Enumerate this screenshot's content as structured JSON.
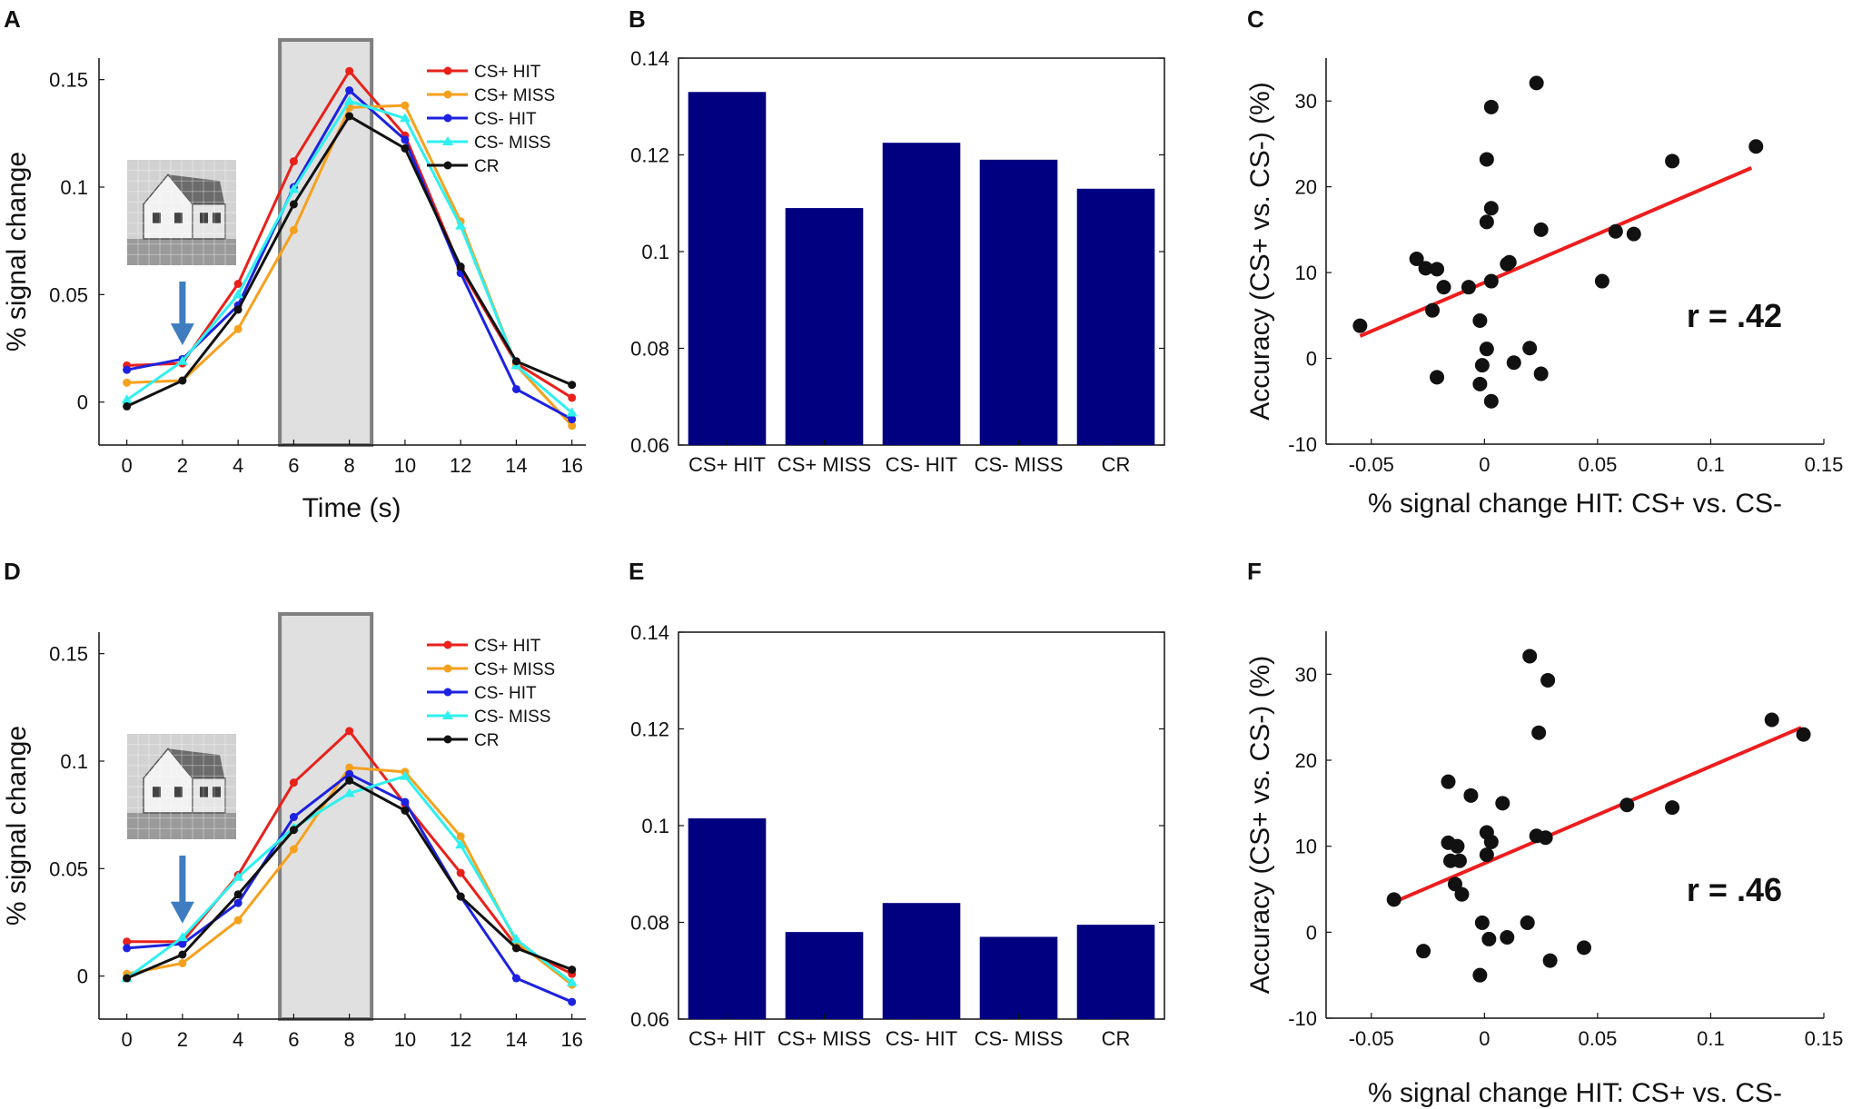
{
  "figure": {
    "panel_letters": [
      "A",
      "B",
      "C",
      "D",
      "E",
      "F"
    ],
    "house_icon": "house-photo-icon",
    "stimulus_arrow_icon": "down-arrow-icon",
    "colors": {
      "CS+ HIT": "#e8211b",
      "CS+ MISS": "#f5a11e",
      "CS- HIT": "#1d22e0",
      "CS- MISS": "#2ff0f0",
      "CR": "#111111",
      "bar": "#000080",
      "fit": "#ee1d1d",
      "shade": "#e0e0e0",
      "shade_border": "#808080",
      "arrow": "#3f7cc0"
    }
  },
  "chart_data": [
    {
      "panel": "A",
      "type": "line",
      "title": "",
      "xlabel": "Time (s)",
      "ylabel": "% signal change",
      "xlim": [
        -1,
        16.5
      ],
      "ylim": [
        -0.02,
        0.16
      ],
      "xticks": [
        0,
        2,
        4,
        6,
        8,
        10,
        12,
        14,
        16
      ],
      "xticklabels": [
        "0",
        "2",
        "4",
        "6",
        "8",
        "10",
        "12",
        "14",
        "16"
      ],
      "yticks": [
        0,
        0.05,
        0.1,
        0.15
      ],
      "yticklabels": [
        "0",
        "0.05",
        "0.1",
        "0.15"
      ],
      "shaded_interval": [
        5.5,
        8.8
      ],
      "legend_position": "top-right",
      "x": [
        0,
        2,
        4,
        6,
        8,
        10,
        12,
        14,
        16
      ],
      "series": [
        {
          "name": "CS+ HIT",
          "values": [
            0.017,
            0.018,
            0.055,
            0.112,
            0.154,
            0.124,
            0.062,
            0.018,
            0.002
          ]
        },
        {
          "name": "CS+ MISS",
          "values": [
            0.009,
            0.01,
            0.034,
            0.08,
            0.137,
            0.138,
            0.084,
            0.017,
            -0.011
          ]
        },
        {
          "name": "CS- HIT",
          "values": [
            0.015,
            0.02,
            0.045,
            0.1,
            0.145,
            0.122,
            0.06,
            0.006,
            -0.008
          ]
        },
        {
          "name": "CS- MISS",
          "values": [
            0.001,
            0.019,
            0.05,
            0.099,
            0.14,
            0.132,
            0.082,
            0.017,
            -0.005
          ]
        },
        {
          "name": "CR",
          "values": [
            -0.002,
            0.01,
            0.043,
            0.092,
            0.133,
            0.118,
            0.063,
            0.019,
            0.008
          ]
        }
      ]
    },
    {
      "panel": "B",
      "type": "bar",
      "title": "",
      "xlabel": "",
      "ylabel": "",
      "categories": [
        "CS+ HIT",
        "CS+ MISS",
        "CS- HIT",
        "CS- MISS",
        "CR"
      ],
      "values": [
        0.133,
        0.109,
        0.1225,
        0.119,
        0.113
      ],
      "ylim": [
        0.06,
        0.14
      ],
      "yticks": [
        0.06,
        0.08,
        0.1,
        0.12,
        0.14
      ],
      "yticklabels": [
        "0.06",
        "0.08",
        "0.1",
        "0.12",
        "0.14"
      ]
    },
    {
      "panel": "C",
      "type": "scatter",
      "title": "",
      "xlabel": "% signal change HIT: CS+ vs. CS-",
      "ylabel": "Accuracy  (CS+ vs. CS-) (%)",
      "xlim": [
        -0.07,
        0.15
      ],
      "ylim": [
        -10,
        35
      ],
      "xticks": [
        -0.05,
        0,
        0.05,
        0.1,
        0.15
      ],
      "xticklabels": [
        "-0.05",
        "0",
        "0.05",
        "0.1",
        "0.15"
      ],
      "yticks": [
        -10,
        0,
        10,
        20,
        30
      ],
      "yticklabels": [
        "-10",
        "0",
        "10",
        "20",
        "30"
      ],
      "annotation": "r = .42",
      "fit_line": {
        "x": [
          -0.055,
          0.118
        ],
        "y": [
          2.6,
          22.2
        ]
      },
      "points": [
        {
          "x": -0.055,
          "y": 3.8
        },
        {
          "x": -0.03,
          "y": 11.6
        },
        {
          "x": -0.026,
          "y": 10.5
        },
        {
          "x": -0.021,
          "y": 10.4
        },
        {
          "x": -0.023,
          "y": 5.6
        },
        {
          "x": -0.018,
          "y": 8.3
        },
        {
          "x": -0.021,
          "y": -2.2
        },
        {
          "x": -0.002,
          "y": 4.4
        },
        {
          "x": -0.007,
          "y": 8.3
        },
        {
          "x": 0.001,
          "y": 23.2
        },
        {
          "x": 0.003,
          "y": 29.3
        },
        {
          "x": 0.003,
          "y": 17.5
        },
        {
          "x": 0.001,
          "y": 15.9
        },
        {
          "x": 0.003,
          "y": 9.0
        },
        {
          "x": -0.001,
          "y": -0.8
        },
        {
          "x": -0.002,
          "y": -3.0
        },
        {
          "x": 0.001,
          "y": 1.1
        },
        {
          "x": 0.003,
          "y": -5.0
        },
        {
          "x": 0.01,
          "y": 11.0
        },
        {
          "x": 0.011,
          "y": 11.2
        },
        {
          "x": 0.013,
          "y": -0.5
        },
        {
          "x": 0.023,
          "y": 32.1
        },
        {
          "x": 0.025,
          "y": 15.0
        },
        {
          "x": 0.025,
          "y": -1.8
        },
        {
          "x": 0.02,
          "y": 1.2
        },
        {
          "x": 0.052,
          "y": 9.0
        },
        {
          "x": 0.058,
          "y": 14.8
        },
        {
          "x": 0.066,
          "y": 14.5
        },
        {
          "x": 0.083,
          "y": 23.0
        },
        {
          "x": 0.12,
          "y": 24.7
        }
      ]
    },
    {
      "panel": "D",
      "type": "line",
      "title": "",
      "xlabel": "",
      "ylabel": "% signal change",
      "xlim": [
        -1,
        16.5
      ],
      "ylim": [
        -0.02,
        0.16
      ],
      "xticks": [
        0,
        2,
        4,
        6,
        8,
        10,
        12,
        14,
        16
      ],
      "xticklabels": [
        "0",
        "2",
        "4",
        "6",
        "8",
        "10",
        "12",
        "14",
        "16"
      ],
      "yticks": [
        0,
        0.05,
        0.1,
        0.15
      ],
      "yticklabels": [
        "0",
        "0.05",
        "0.1",
        "0.15"
      ],
      "shaded_interval": [
        5.5,
        8.8
      ],
      "legend_position": "top-right",
      "x": [
        0,
        2,
        4,
        6,
        8,
        10,
        12,
        14,
        16
      ],
      "series": [
        {
          "name": "CS+ HIT",
          "values": [
            0.016,
            0.016,
            0.047,
            0.09,
            0.114,
            0.08,
            0.048,
            0.014,
            0.001
          ]
        },
        {
          "name": "CS+ MISS",
          "values": [
            0.001,
            0.006,
            0.026,
            0.059,
            0.097,
            0.095,
            0.065,
            0.016,
            -0.004
          ]
        },
        {
          "name": "CS- HIT",
          "values": [
            0.013,
            0.015,
            0.034,
            0.074,
            0.094,
            0.081,
            0.037,
            -0.001,
            -0.012
          ]
        },
        {
          "name": "CS- MISS",
          "values": [
            -0.001,
            0.018,
            0.046,
            0.069,
            0.085,
            0.093,
            0.061,
            0.017,
            -0.003
          ]
        },
        {
          "name": "CR",
          "values": [
            -0.001,
            0.01,
            0.038,
            0.068,
            0.091,
            0.077,
            0.037,
            0.013,
            0.003
          ]
        }
      ]
    },
    {
      "panel": "E",
      "type": "bar",
      "title": "",
      "xlabel": "",
      "ylabel": "",
      "categories": [
        "CS+ HIT",
        "CS+ MISS",
        "CS- HIT",
        "CS- MISS",
        "CR"
      ],
      "values": [
        0.1015,
        0.078,
        0.084,
        0.077,
        0.0795
      ],
      "ylim": [
        0.06,
        0.14
      ],
      "yticks": [
        0.06,
        0.08,
        0.1,
        0.12,
        0.14
      ],
      "yticklabels": [
        "0.06",
        "0.08",
        "0.1",
        "0.12",
        "0.14"
      ]
    },
    {
      "panel": "F",
      "type": "scatter",
      "title": "",
      "xlabel": "% signal change HIT: CS+ vs. CS-",
      "ylabel": "Accuracy  (CS+ vs. CS-) (%)",
      "xlim": [
        -0.07,
        0.15
      ],
      "ylim": [
        -10,
        35
      ],
      "xticks": [
        -0.05,
        0,
        0.05,
        0.1,
        0.15
      ],
      "xticklabels": [
        "-0.05",
        "0",
        "0.05",
        "0.1",
        "0.15"
      ],
      "yticks": [
        -10,
        0,
        10,
        20,
        30
      ],
      "yticklabels": [
        "-10",
        "0",
        "10",
        "20",
        "30"
      ],
      "annotation": "r = .46",
      "fit_line": {
        "x": [
          -0.04,
          0.14
        ],
        "y": [
          3.5,
          23.8
        ]
      },
      "points": [
        {
          "x": -0.04,
          "y": 3.8
        },
        {
          "x": -0.027,
          "y": -2.2
        },
        {
          "x": -0.016,
          "y": 17.5
        },
        {
          "x": -0.016,
          "y": 10.4
        },
        {
          "x": -0.015,
          "y": 8.3
        },
        {
          "x": -0.013,
          "y": 5.6
        },
        {
          "x": -0.011,
          "y": 8.3
        },
        {
          "x": -0.01,
          "y": 4.4
        },
        {
          "x": -0.006,
          "y": 15.9
        },
        {
          "x": -0.012,
          "y": 10.0
        },
        {
          "x": -0.002,
          "y": -5.0
        },
        {
          "x": -0.001,
          "y": 1.1
        },
        {
          "x": 0.001,
          "y": 11.6
        },
        {
          "x": 0.003,
          "y": 10.5
        },
        {
          "x": 0.001,
          "y": 9.0
        },
        {
          "x": 0.002,
          "y": -0.8
        },
        {
          "x": 0.008,
          "y": 15.0
        },
        {
          "x": 0.02,
          "y": 32.1
        },
        {
          "x": 0.024,
          "y": 23.2
        },
        {
          "x": 0.028,
          "y": 29.3
        },
        {
          "x": 0.023,
          "y": 11.2
        },
        {
          "x": 0.027,
          "y": 11.0
        },
        {
          "x": 0.019,
          "y": 1.1
        },
        {
          "x": 0.01,
          "y": -0.6
        },
        {
          "x": 0.029,
          "y": -3.3
        },
        {
          "x": 0.044,
          "y": -1.8
        },
        {
          "x": 0.063,
          "y": 14.8
        },
        {
          "x": 0.083,
          "y": 14.5
        },
        {
          "x": 0.127,
          "y": 24.7
        },
        {
          "x": 0.141,
          "y": 23.0
        }
      ]
    }
  ]
}
